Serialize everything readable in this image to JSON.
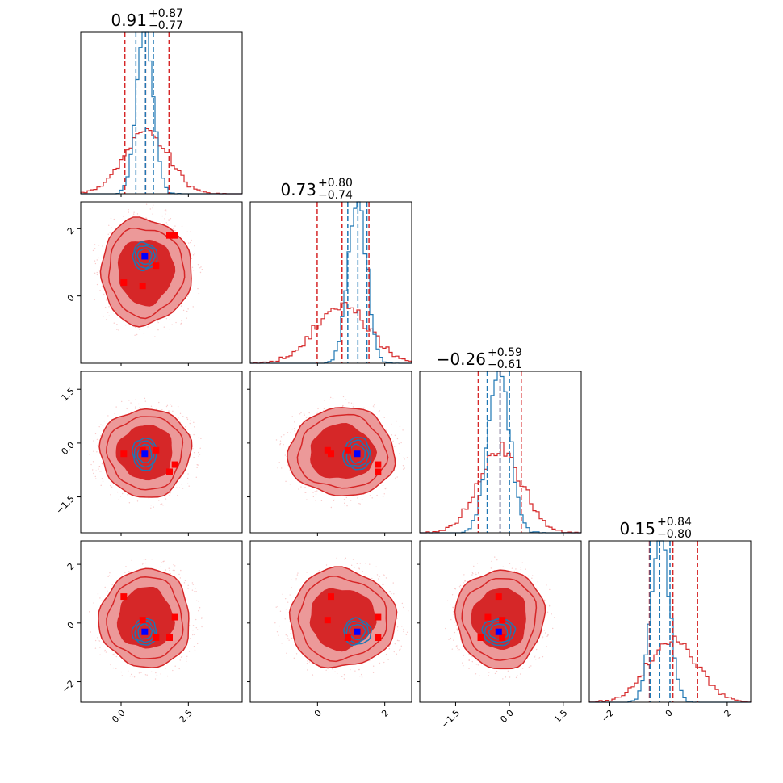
{
  "chart_data": {
    "type": "corner",
    "params": 4,
    "colors": {
      "red": "#d62728",
      "blue": "#1f77b4",
      "red_fill_dark": "#d62728",
      "red_fill_light": "#ec9999",
      "marker_red": "#ff0000",
      "marker_blue": "#0000ff"
    },
    "axes_ranges": [
      [
        -1.5,
        4.5
      ],
      [
        -2.0,
        2.8
      ],
      [
        -2.5,
        2.0
      ],
      [
        -2.7,
        2.8
      ]
    ],
    "tick_labels": [
      {
        "values": [
          0.0,
          2.5
        ],
        "labels": [
          "0.0",
          "2.5"
        ]
      },
      {
        "values": [
          0,
          2
        ],
        "labels": [
          "0",
          "2"
        ]
      },
      {
        "values": [
          -1.5,
          0.0,
          1.5
        ],
        "labels": [
          "−1.5",
          "0.0",
          "1.5"
        ]
      },
      {
        "values": [
          -2,
          0,
          2
        ],
        "labels": [
          "−2",
          "0",
          "2"
        ]
      }
    ],
    "titles": [
      {
        "main": "0.91",
        "plus": "+0.87",
        "minus": "−0.77"
      },
      {
        "main": "0.73",
        "plus": "+0.80",
        "minus": "−0.74"
      },
      {
        "main": "−0.26",
        "plus": "+0.59",
        "minus": "−0.61"
      },
      {
        "main": "0.15",
        "plus": "+0.84",
        "minus": "−0.80"
      }
    ],
    "red_quantiles": [
      [
        0.14,
        0.91,
        1.78
      ],
      [
        -0.01,
        0.73,
        1.53
      ],
      [
        -0.87,
        -0.26,
        0.33
      ],
      [
        -0.65,
        0.15,
        0.99
      ]
    ],
    "blue_quantiles": [
      [
        0.55,
        0.91,
        1.2
      ],
      [
        0.9,
        1.2,
        1.47
      ],
      [
        -0.62,
        -0.26,
        0.0
      ],
      [
        -0.63,
        -0.3,
        0.05
      ]
    ],
    "red_dist": [
      {
        "mean": 0.91,
        "sd": 0.82
      },
      {
        "mean": 0.73,
        "sd": 0.77
      },
      {
        "mean": -0.26,
        "sd": 0.6
      },
      {
        "mean": 0.15,
        "sd": 0.82
      }
    ],
    "blue_dist": [
      {
        "mean": 0.88,
        "sd": 0.3
      },
      {
        "mean": 1.18,
        "sd": 0.27
      },
      {
        "mean": -0.3,
        "sd": 0.3
      },
      {
        "mean": -0.28,
        "sd": 0.3
      }
    ],
    "blue_truth": [
      0.88,
      1.18,
      -0.3,
      -0.3
    ],
    "red_points": [
      [
        2.0,
        1.8,
        -0.6,
        0.2
      ],
      [
        0.1,
        0.4,
        -0.3,
        0.9
      ],
      [
        0.8,
        0.3,
        -0.2,
        0.1
      ],
      [
        1.3,
        0.9,
        -0.2,
        -0.5
      ],
      [
        1.8,
        1.8,
        -0.8,
        -0.5
      ]
    ]
  }
}
